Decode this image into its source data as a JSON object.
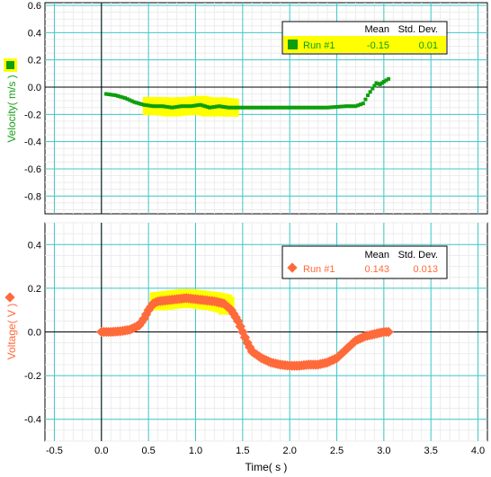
{
  "chart_data": [
    {
      "type": "scatter",
      "xlabel": "Time( s )",
      "ylabel": "Velocity( m/s )",
      "xlim": [
        -0.6,
        4.1
      ],
      "ylim": [
        -0.93,
        0.62
      ],
      "x_ticks": [
        "-0.5",
        "0.0",
        "0.5",
        "1.0",
        "1.5",
        "2.0",
        "2.5",
        "3.0",
        "3.5",
        "4.0"
      ],
      "y_ticks": [
        "0.6",
        "0.4",
        "0.2",
        "0.0",
        "-0.2",
        "-0.4",
        "-0.6",
        "-0.8"
      ],
      "grid": true,
      "series": [
        {
          "name": "Run #1",
          "color": "#0c9e0c",
          "marker": "square",
          "points": [
            [
              0.05,
              -0.05
            ],
            [
              0.15,
              -0.06
            ],
            [
              0.25,
              -0.08
            ],
            [
              0.35,
              -0.11
            ],
            [
              0.45,
              -0.13
            ],
            [
              0.55,
              -0.14
            ],
            [
              0.65,
              -0.14
            ],
            [
              0.75,
              -0.15
            ],
            [
              0.85,
              -0.14
            ],
            [
              0.95,
              -0.14
            ],
            [
              1.05,
              -0.13
            ],
            [
              1.15,
              -0.15
            ],
            [
              1.25,
              -0.14
            ],
            [
              1.35,
              -0.15
            ],
            [
              1.45,
              -0.15
            ],
            [
              1.6,
              -0.15
            ],
            [
              1.8,
              -0.15
            ],
            [
              2.0,
              -0.15
            ],
            [
              2.2,
              -0.15
            ],
            [
              2.4,
              -0.15
            ],
            [
              2.6,
              -0.14
            ],
            [
              2.7,
              -0.14
            ],
            [
              2.78,
              -0.12
            ],
            [
              2.83,
              -0.06
            ],
            [
              2.88,
              -0.01
            ],
            [
              2.92,
              0.03
            ],
            [
              2.96,
              0.02
            ],
            [
              3.0,
              0.04
            ],
            [
              3.05,
              0.06
            ]
          ],
          "highlight_x": [
            0.52,
            1.38
          ]
        }
      ],
      "legend": {
        "placement": "top-right",
        "headers": [
          "Mean",
          "Std. Dev."
        ],
        "rows": [
          {
            "label": "Run #1",
            "mean": "-0.15",
            "std": "0.01"
          }
        ]
      }
    },
    {
      "type": "scatter",
      "xlabel": "Time( s )",
      "ylabel": "Voltage( V )",
      "xlim": [
        -0.6,
        4.1
      ],
      "ylim": [
        -0.5,
        0.5
      ],
      "x_ticks": [
        "-0.5",
        "0.0",
        "0.5",
        "1.0",
        "1.5",
        "2.0",
        "2.5",
        "3.0",
        "3.5",
        "4.0"
      ],
      "y_ticks": [
        "0.4",
        "0.2",
        "0.0",
        "-0.2",
        "-0.4"
      ],
      "grid": true,
      "series": [
        {
          "name": "Run #1",
          "color": "#ff6a3a",
          "marker": "diamond",
          "points": [
            [
              0.0,
              0.0
            ],
            [
              0.1,
              0.0
            ],
            [
              0.2,
              0.003
            ],
            [
              0.3,
              0.01
            ],
            [
              0.4,
              0.03
            ],
            [
              0.45,
              0.06
            ],
            [
              0.5,
              0.1
            ],
            [
              0.55,
              0.13
            ],
            [
              0.6,
              0.14
            ],
            [
              0.7,
              0.145
            ],
            [
              0.8,
              0.15
            ],
            [
              0.9,
              0.155
            ],
            [
              1.0,
              0.15
            ],
            [
              1.1,
              0.145
            ],
            [
              1.2,
              0.14
            ],
            [
              1.3,
              0.13
            ],
            [
              1.38,
              0.1
            ],
            [
              1.45,
              0.05
            ],
            [
              1.5,
              0.0
            ],
            [
              1.55,
              -0.05
            ],
            [
              1.6,
              -0.09
            ],
            [
              1.7,
              -0.12
            ],
            [
              1.8,
              -0.14
            ],
            [
              1.9,
              -0.15
            ],
            [
              2.0,
              -0.155
            ],
            [
              2.1,
              -0.155
            ],
            [
              2.2,
              -0.15
            ],
            [
              2.3,
              -0.15
            ],
            [
              2.4,
              -0.14
            ],
            [
              2.5,
              -0.12
            ],
            [
              2.6,
              -0.08
            ],
            [
              2.7,
              -0.04
            ],
            [
              2.8,
              -0.02
            ],
            [
              2.9,
              -0.01
            ],
            [
              3.0,
              0.0
            ],
            [
              3.05,
              0.0
            ]
          ],
          "highlight_x": [
            0.6,
            1.35
          ]
        }
      ],
      "legend": {
        "placement": "top-right",
        "headers": [
          "Mean",
          "Std. Dev."
        ],
        "rows": [
          {
            "label": "Run #1",
            "mean": "0.143",
            "std": "0.013"
          }
        ]
      }
    }
  ],
  "colors": {
    "grid_major": "#40c8c8",
    "grid_minor": "#ececec",
    "highlight": "#ffff00"
  },
  "icons": [
    "velocity-axis-marker-icon",
    "voltage-axis-marker-icon"
  ]
}
